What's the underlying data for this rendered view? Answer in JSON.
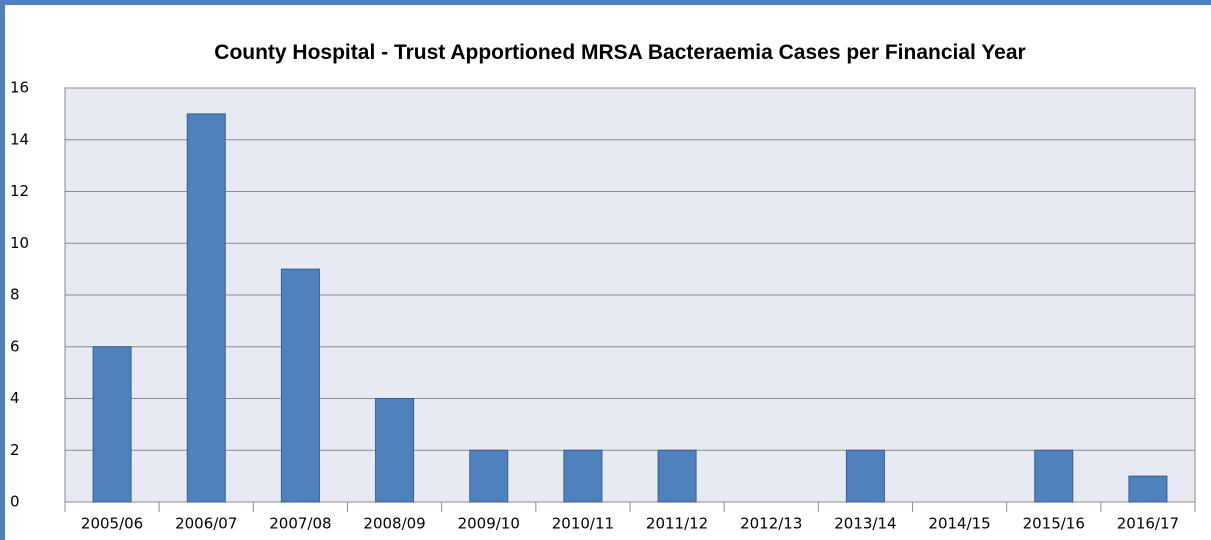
{
  "chart_data": {
    "type": "bar",
    "title": "County Hospital - Trust Apportioned MRSA Bacteraemia Cases per Financial Year",
    "categories": [
      "2005/06",
      "2006/07",
      "2007/08",
      "2008/09",
      "2009/10",
      "2010/11",
      "2011/12",
      "2012/13",
      "2013/14",
      "2014/15",
      "2015/16",
      "2016/17"
    ],
    "values": [
      6,
      15,
      9,
      4,
      2,
      2,
      2,
      0,
      2,
      0,
      2,
      1
    ],
    "color": "#4f81bd",
    "ylim": [
      0,
      16
    ],
    "yticks": [
      0,
      2,
      4,
      6,
      8,
      10,
      12,
      14,
      16
    ],
    "grid": true
  }
}
